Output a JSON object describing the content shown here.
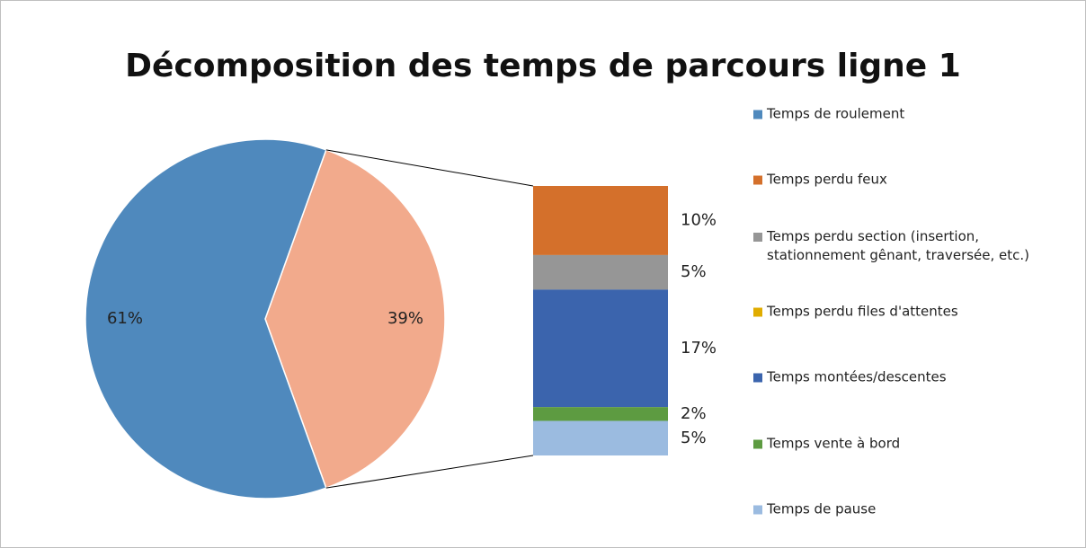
{
  "chart_data": {
    "type": "bar-of-pie",
    "title": "Décomposition des temps de parcours ligne 1",
    "series": [
      {
        "name": "Temps de roulement",
        "color": "#4f89bd"
      },
      {
        "name": "Temps perdu feux",
        "color": "#d4702b"
      },
      {
        "name": "Temps perdu section (insertion, stationnement gênant, traversée, etc.)",
        "color": "#969696"
      },
      {
        "name": "Temps perdu files d'attentes",
        "color": "#e0ac00"
      },
      {
        "name": "Temps montées/descentes",
        "color": "#3b64ad"
      },
      {
        "name": "Temps vente à bord",
        "color": "#5d9b41"
      },
      {
        "name": "Temps de pause",
        "color": "#9bbbe0"
      }
    ],
    "pie": {
      "values": [
        61,
        39
      ],
      "value_labels": [
        "61%",
        "39%"
      ],
      "colors": [
        "#4f89bd",
        "#f2aa8c"
      ]
    },
    "bar": {
      "values": [
        10,
        5,
        0,
        17,
        2,
        5
      ],
      "value_labels": [
        "10%",
        "5%",
        null,
        "17%",
        "2%",
        "5%"
      ]
    }
  }
}
